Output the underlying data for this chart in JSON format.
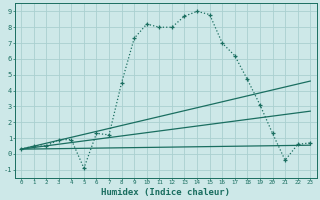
{
  "bg_color": "#cde8e8",
  "grid_color": "#aad0d0",
  "line_color": "#1a6e60",
  "xlabel": "Humidex (Indice chaleur)",
  "xlim": [
    -0.5,
    23.5
  ],
  "ylim": [
    -1.5,
    9.5
  ],
  "yticks": [
    -1,
    0,
    1,
    2,
    3,
    4,
    5,
    6,
    7,
    8,
    9
  ],
  "xticks": [
    0,
    1,
    2,
    3,
    4,
    5,
    6,
    7,
    8,
    9,
    10,
    11,
    12,
    13,
    14,
    15,
    16,
    17,
    18,
    19,
    20,
    21,
    22,
    23
  ],
  "line1_x": [
    0,
    1,
    2,
    3,
    4,
    5,
    6,
    7,
    8,
    9,
    10,
    11,
    12,
    13,
    14,
    15,
    16,
    17,
    18,
    19,
    20,
    21,
    22,
    23
  ],
  "line1_y": [
    0.3,
    0.5,
    0.5,
    0.9,
    0.9,
    -0.9,
    1.3,
    1.2,
    4.5,
    7.3,
    8.2,
    8.0,
    8.0,
    8.7,
    9.0,
    8.8,
    7.0,
    6.2,
    4.7,
    3.1,
    1.3,
    -0.4,
    0.6,
    0.7
  ],
  "line2_x": [
    0,
    23
  ],
  "line2_y": [
    0.3,
    4.6
  ],
  "line3_x": [
    0,
    23
  ],
  "line3_y": [
    0.3,
    2.7
  ],
  "line4_x": [
    0,
    23
  ],
  "line4_y": [
    0.3,
    0.55
  ],
  "tick_fontsize": 5.5,
  "xlabel_fontsize": 6.5
}
